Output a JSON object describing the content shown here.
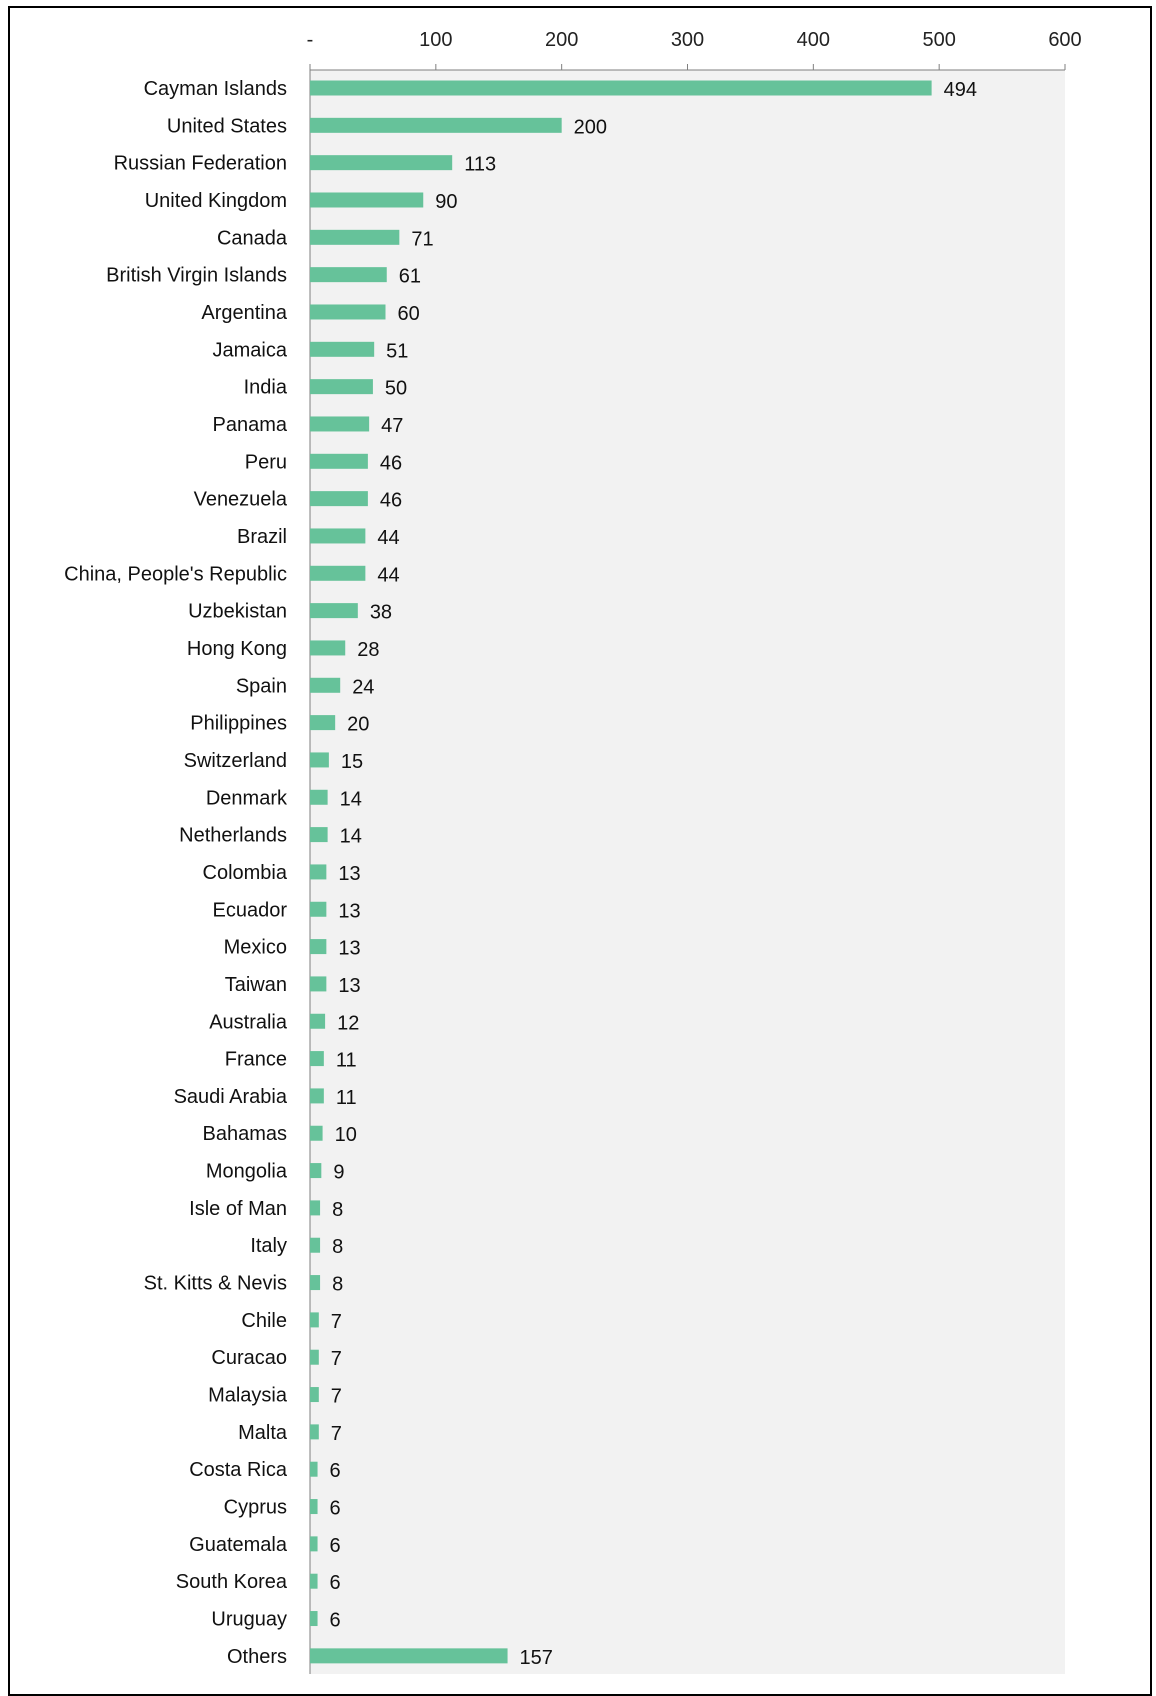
{
  "chart_data": {
    "type": "bar",
    "orientation": "horizontal",
    "title": "",
    "xlabel": "",
    "ylabel": "",
    "xlim": [
      0,
      600
    ],
    "x_ticks": [
      0,
      100,
      200,
      300,
      400,
      500,
      600
    ],
    "x_tick_labels": [
      "-",
      "100",
      "200",
      "300",
      "400",
      "500",
      "600"
    ],
    "x_axis_position": "top",
    "grid": false,
    "legend": "none",
    "colors": {
      "bar": "#66c29a",
      "plot_background": "#f2f2f2",
      "axis": "#7f7f7f"
    },
    "categories": [
      "Cayman Islands",
      "United States",
      "Russian Federation",
      "United Kingdom",
      "Canada",
      "British Virgin Islands",
      "Argentina",
      "Jamaica",
      "India",
      "Panama",
      "Peru",
      "Venezuela",
      "Brazil",
      "China, People's Republic",
      "Uzbekistan",
      "Hong Kong",
      "Spain",
      "Philippines",
      "Switzerland",
      "Denmark",
      "Netherlands",
      "Colombia",
      "Ecuador",
      "Mexico",
      "Taiwan",
      "Australia",
      "France",
      "Saudi Arabia",
      "Bahamas",
      "Mongolia",
      "Isle of Man",
      "Italy",
      "St. Kitts & Nevis",
      "Chile",
      "Curacao",
      "Malaysia",
      "Malta",
      "Costa Rica",
      "Cyprus",
      "Guatemala",
      "South Korea",
      "Uruguay",
      "Others"
    ],
    "values": [
      494,
      200,
      113,
      90,
      71,
      61,
      60,
      51,
      50,
      47,
      46,
      46,
      44,
      44,
      38,
      28,
      24,
      20,
      15,
      14,
      14,
      13,
      13,
      13,
      13,
      12,
      11,
      11,
      10,
      9,
      8,
      8,
      8,
      7,
      7,
      7,
      7,
      6,
      6,
      6,
      6,
      6,
      157
    ]
  }
}
